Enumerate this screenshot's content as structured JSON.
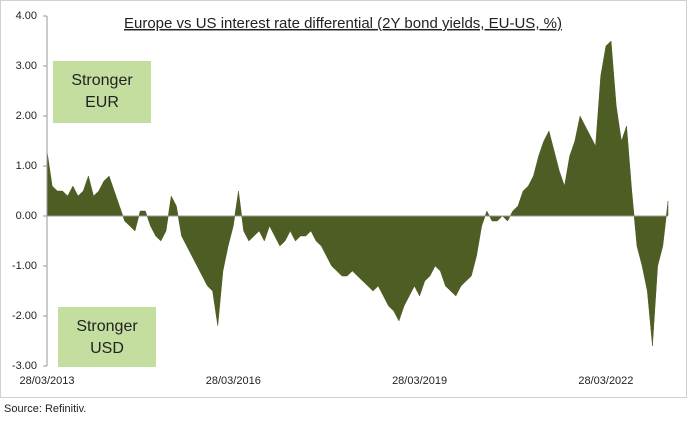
{
  "chart_data": {
    "type": "area",
    "title": "Europe vs US interest rate differential (2Y bond yields, EU-US, %)",
    "source": "Source: Refinitiv.",
    "annotations": [
      {
        "lines": [
          "Stronger",
          "EUR"
        ]
      },
      {
        "lines": [
          "Stronger",
          "USD"
        ]
      }
    ],
    "color": "#4e5d23",
    "x": [
      "28/03/2013",
      "28/04/2013",
      "28/05/2013",
      "28/06/2013",
      "28/07/2013",
      "28/08/2013",
      "28/09/2013",
      "28/10/2013",
      "28/11/2013",
      "28/12/2013",
      "28/01/2014",
      "28/02/2014",
      "28/03/2014",
      "28/04/2014",
      "28/05/2014",
      "28/06/2014",
      "28/07/2014",
      "28/08/2014",
      "28/09/2014",
      "28/10/2014",
      "28/11/2014",
      "28/12/2014",
      "28/01/2015",
      "28/02/2015",
      "28/03/2015",
      "28/04/2015",
      "28/05/2015",
      "28/06/2015",
      "28/07/2015",
      "28/08/2015",
      "28/09/2015",
      "28/10/2015",
      "28/11/2015",
      "28/12/2015",
      "28/01/2016",
      "28/02/2016",
      "28/03/2016",
      "28/04/2016",
      "28/05/2016",
      "28/06/2016",
      "28/07/2016",
      "28/08/2016",
      "28/09/2016",
      "28/10/2016",
      "28/11/2016",
      "28/12/2016",
      "28/01/2017",
      "28/02/2017",
      "28/03/2017",
      "28/04/2017",
      "28/05/2017",
      "28/06/2017",
      "28/07/2017",
      "28/08/2017",
      "28/09/2017",
      "28/10/2017",
      "28/11/2017",
      "28/12/2017",
      "28/01/2018",
      "28/02/2018",
      "28/03/2018",
      "28/04/2018",
      "28/05/2018",
      "28/06/2018",
      "28/07/2018",
      "28/08/2018",
      "28/09/2018",
      "28/10/2018",
      "28/11/2018",
      "28/12/2018",
      "28/01/2019",
      "28/02/2019",
      "28/03/2019",
      "28/04/2019",
      "28/05/2019",
      "28/06/2019",
      "28/07/2019",
      "28/08/2019",
      "28/09/2019",
      "28/10/2019",
      "28/11/2019",
      "28/12/2019",
      "28/01/2020",
      "28/02/2020",
      "28/03/2020",
      "28/04/2020",
      "28/05/2020",
      "28/06/2020",
      "28/07/2020",
      "28/08/2020",
      "28/09/2020",
      "28/10/2020",
      "28/11/2020",
      "28/12/2020",
      "28/01/2021",
      "28/02/2021",
      "28/03/2021",
      "28/04/2021",
      "28/05/2021",
      "28/06/2021",
      "28/07/2021",
      "28/08/2021",
      "28/09/2021",
      "28/10/2021",
      "28/11/2021",
      "28/12/2021",
      "28/01/2022",
      "28/02/2022",
      "28/03/2022",
      "28/04/2022",
      "28/05/2022",
      "28/06/2022",
      "28/07/2022",
      "28/08/2022",
      "28/09/2022",
      "28/10/2022",
      "28/11/2022",
      "28/12/2022",
      "28/01/2023",
      "28/02/2023",
      "28/03/2023"
    ],
    "values": [
      1.3,
      0.6,
      0.5,
      0.5,
      0.4,
      0.6,
      0.4,
      0.5,
      0.8,
      0.4,
      0.5,
      0.7,
      0.8,
      0.5,
      0.2,
      -0.1,
      -0.2,
      -0.3,
      0.1,
      0.1,
      -0.2,
      -0.4,
      -0.5,
      -0.3,
      0.4,
      0.2,
      -0.4,
      -0.6,
      -0.8,
      -1.0,
      -1.2,
      -1.4,
      -1.5,
      -2.2,
      -1.1,
      -0.6,
      -0.2,
      0.5,
      -0.3,
      -0.5,
      -0.4,
      -0.3,
      -0.5,
      -0.2,
      -0.4,
      -0.6,
      -0.5,
      -0.3,
      -0.5,
      -0.4,
      -0.4,
      -0.3,
      -0.5,
      -0.6,
      -0.8,
      -1.0,
      -1.1,
      -1.2,
      -1.2,
      -1.1,
      -1.2,
      -1.3,
      -1.4,
      -1.5,
      -1.4,
      -1.6,
      -1.8,
      -1.9,
      -2.1,
      -1.8,
      -1.6,
      -1.4,
      -1.6,
      -1.3,
      -1.2,
      -1.0,
      -1.1,
      -1.4,
      -1.5,
      -1.6,
      -1.4,
      -1.3,
      -1.2,
      -0.8,
      -0.2,
      0.1,
      -0.1,
      -0.1,
      0.0,
      -0.1,
      0.1,
      0.2,
      0.5,
      0.6,
      0.8,
      1.2,
      1.5,
      1.7,
      1.3,
      0.9,
      0.6,
      1.2,
      1.5,
      2.0,
      1.8,
      1.6,
      1.4,
      2.8,
      3.4,
      3.5,
      2.2,
      1.5,
      1.8,
      0.5,
      -0.6,
      -1.0,
      -1.5,
      -2.6,
      -1.0,
      -0.6,
      0.3
    ],
    "xticks": [
      "28/03/2013",
      "28/03/2016",
      "28/03/2019",
      "28/03/2022"
    ],
    "ylim": [
      -3,
      4
    ],
    "yticks": [
      {
        "value": -3,
        "label": "-3.00"
      },
      {
        "value": -2,
        "label": "-2.00"
      },
      {
        "value": -1,
        "label": "-1.00"
      },
      {
        "value": 0,
        "label": "0.00"
      },
      {
        "value": 1,
        "label": "1.00"
      },
      {
        "value": 2,
        "label": "2.00"
      },
      {
        "value": 3,
        "label": "3.00"
      },
      {
        "value": 4,
        "label": "4.00"
      }
    ]
  }
}
